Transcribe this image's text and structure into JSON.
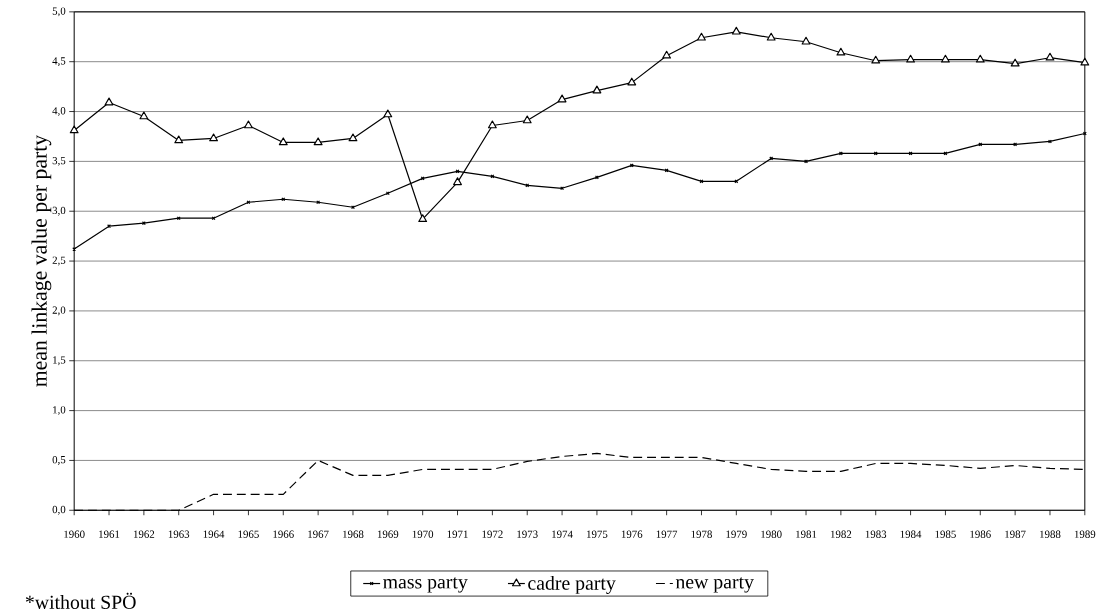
{
  "chart_data": {
    "type": "line",
    "ylabel": "mean linkage value per party",
    "annotations": [
      "*without SPÖ"
    ],
    "categories": [
      "1960",
      "1961",
      "1962",
      "1963",
      "1964",
      "1965",
      "1966",
      "1967",
      "1968",
      "1969",
      "1970",
      "1971",
      "1972",
      "1973",
      "1974",
      "1975",
      "1976",
      "1977",
      "1978",
      "1979",
      "1980",
      "1981",
      "1982",
      "1983",
      "1984",
      "1985",
      "1986",
      "1987",
      "1988",
      "1989"
    ],
    "series": [
      {
        "name": "mass party",
        "color": "#000000",
        "marker": "cross",
        "line_style": "solid",
        "values": [
          2.62,
          2.85,
          2.88,
          2.93,
          2.93,
          3.09,
          3.12,
          3.09,
          3.04,
          3.18,
          3.33,
          3.4,
          3.35,
          3.26,
          3.23,
          3.34,
          3.46,
          3.41,
          3.3,
          3.3,
          3.53,
          3.5,
          3.58,
          3.58,
          3.58,
          3.58,
          3.67,
          3.67,
          3.7,
          3.78
        ]
      },
      {
        "name": "cadre party",
        "color": "#000000",
        "marker": "triangle",
        "line_style": "solid",
        "values": [
          3.81,
          4.09,
          3.95,
          3.71,
          3.73,
          3.86,
          3.69,
          3.69,
          3.73,
          3.97,
          2.92,
          3.29,
          3.86,
          3.91,
          4.12,
          4.21,
          4.29,
          4.56,
          4.74,
          4.8,
          4.74,
          4.7,
          4.59,
          4.51,
          4.52,
          4.52,
          4.52,
          4.48,
          4.54,
          4.49
        ]
      },
      {
        "name": "new party",
        "color": "#000000",
        "marker": "none",
        "line_style": "dashed",
        "values": [
          0,
          0,
          0,
          0,
          0.16,
          0.16,
          0.16,
          0.5,
          0.35,
          0.35,
          0.41,
          0.41,
          0.41,
          0.49,
          0.54,
          0.57,
          0.53,
          0.53,
          0.53,
          0.47,
          0.41,
          0.39,
          0.39,
          0.47,
          0.47,
          0.45,
          0.42,
          0.45,
          0.42,
          0.41
        ]
      }
    ],
    "ylim": [
      0,
      5
    ],
    "yticks": [
      {
        "value": 0,
        "label": "0,0"
      },
      {
        "value": 0.5,
        "label": "0,5"
      },
      {
        "value": 1,
        "label": "1,0"
      },
      {
        "value": 1.5,
        "label": "1,5"
      },
      {
        "value": 2,
        "label": "2,0"
      },
      {
        "value": 2.5,
        "label": "2,5"
      },
      {
        "value": 3,
        "label": "3,0"
      },
      {
        "value": 3.5,
        "label": "3,5"
      },
      {
        "value": 4,
        "label": "4,0"
      },
      {
        "value": 4.5,
        "label": "4,5"
      },
      {
        "value": 5,
        "label": "5,0"
      }
    ],
    "grid": "y",
    "legend": "bottom"
  }
}
